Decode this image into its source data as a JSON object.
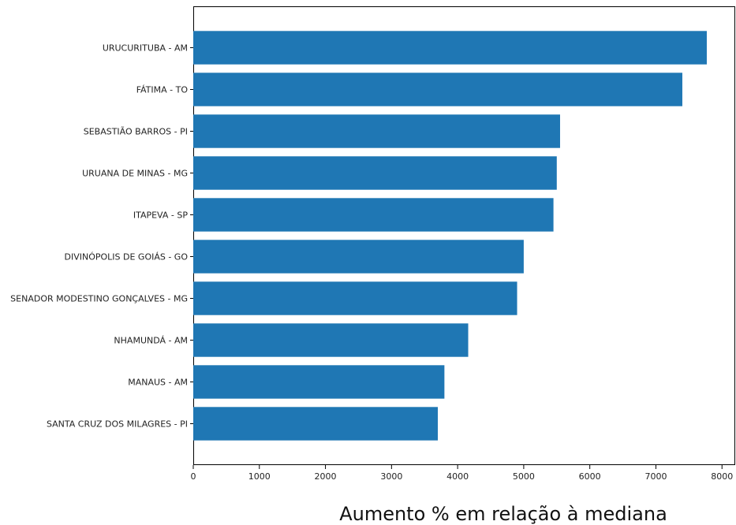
{
  "chart_data": {
    "type": "bar",
    "orientation": "horizontal",
    "categories": [
      "URUCURITUBA - AM",
      "FÁTIMA - TO",
      "SEBASTIÃO BARROS - PI",
      "URUANA DE MINAS - MG",
      "ITAPEVA - SP",
      "DIVINÓPOLIS DE GOIÁS - GO",
      "SENADOR MODESTINO GONÇALVES - MG",
      "NHAMUNDÁ - AM",
      "MANAUS - AM",
      "SANTA CRUZ DOS MILAGRES - PI"
    ],
    "values": [
      7770,
      7400,
      5550,
      5500,
      5450,
      5000,
      4900,
      4160,
      3800,
      3700
    ],
    "title": "",
    "xlabel": "Aumento % em relação à mediana",
    "ylabel": "",
    "xlim": [
      0,
      8200
    ],
    "xticks": [
      0,
      1000,
      2000,
      3000,
      4000,
      5000,
      6000,
      7000,
      8000
    ],
    "grid": false,
    "bar_color": "#1f77b4"
  }
}
